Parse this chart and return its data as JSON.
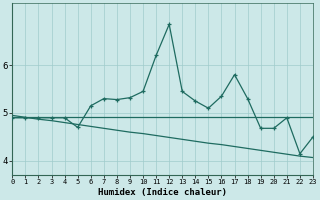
{
  "xlabel": "Humidex (Indice chaleur)",
  "x": [
    0,
    1,
    2,
    3,
    4,
    5,
    6,
    7,
    8,
    9,
    10,
    11,
    12,
    13,
    14,
    15,
    16,
    17,
    18,
    19,
    20,
    21,
    22,
    23
  ],
  "y_main": [
    4.9,
    4.9,
    4.9,
    4.9,
    4.9,
    4.7,
    5.15,
    5.3,
    5.28,
    5.32,
    5.45,
    6.2,
    6.85,
    5.45,
    5.25,
    5.1,
    5.35,
    5.8,
    5.3,
    4.68,
    4.68,
    4.9,
    4.15,
    4.5
  ],
  "y_linear": [
    4.95,
    4.91,
    4.87,
    4.84,
    4.8,
    4.76,
    4.72,
    4.68,
    4.64,
    4.6,
    4.57,
    4.53,
    4.49,
    4.45,
    4.41,
    4.37,
    4.34,
    4.3,
    4.26,
    4.22,
    4.18,
    4.14,
    4.1,
    4.07
  ],
  "y_flat": [
    4.92,
    4.92,
    4.92,
    4.92,
    4.92,
    4.92,
    4.92,
    4.92,
    4.92,
    4.92,
    4.92,
    4.92,
    4.92,
    4.92,
    4.92,
    4.92,
    4.92,
    4.92,
    4.92,
    4.92,
    4.92,
    4.92,
    4.92,
    4.92
  ],
  "line_color": "#1e6b60",
  "bg_color": "#cce8e8",
  "grid_color": "#a0cccc",
  "ylim": [
    3.7,
    7.3
  ],
  "xlim": [
    0,
    23
  ],
  "yticks": [
    4,
    5,
    6
  ],
  "xtick_labels": [
    "0",
    "1",
    "2",
    "3",
    "4",
    "5",
    "6",
    "7",
    "8",
    "9",
    "10",
    "11",
    "12",
    "13",
    "14",
    "15",
    "16",
    "17",
    "18",
    "19",
    "20",
    "21",
    "22",
    "23"
  ]
}
